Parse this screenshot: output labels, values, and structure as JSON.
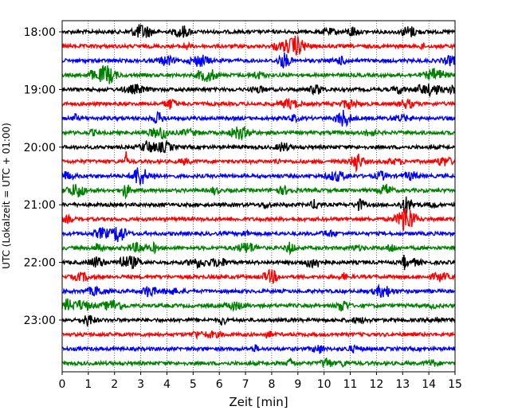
{
  "chart_data": {
    "type": "line",
    "title": "",
    "xlabel": "Zeit  [min]",
    "ylabel": "UTC (Lokalzeit = UTC + 01:00)",
    "xlim": [
      0,
      15
    ],
    "x_ticks": [
      0,
      1,
      2,
      3,
      4,
      5,
      6,
      7,
      8,
      9,
      10,
      11,
      12,
      13,
      14,
      15
    ],
    "x_tick_labels": [
      "0",
      "1",
      "2",
      "3",
      "4",
      "5",
      "6",
      "7",
      "8",
      "9",
      "10",
      "11",
      "12",
      "13",
      "14",
      "15"
    ],
    "y_tick_labels": [
      "18:00",
      "19:00",
      "20:00",
      "21:00",
      "22:00",
      "23:00"
    ],
    "grid": "vertical dotted",
    "trace_colors": [
      "#000000",
      "#ff0000",
      "#0000ff",
      "#008000"
    ],
    "traces": [
      {
        "start": "18:00",
        "color": "#000000"
      },
      {
        "start": "18:15",
        "color": "#ff0000"
      },
      {
        "start": "18:30",
        "color": "#0000ff"
      },
      {
        "start": "18:45",
        "color": "#008000"
      },
      {
        "start": "19:00",
        "color": "#000000"
      },
      {
        "start": "19:15",
        "color": "#ff0000"
      },
      {
        "start": "19:30",
        "color": "#0000ff"
      },
      {
        "start": "19:45",
        "color": "#008000"
      },
      {
        "start": "20:00",
        "color": "#000000"
      },
      {
        "start": "20:15",
        "color": "#ff0000"
      },
      {
        "start": "20:30",
        "color": "#0000ff"
      },
      {
        "start": "20:45",
        "color": "#008000"
      },
      {
        "start": "21:00",
        "color": "#000000"
      },
      {
        "start": "21:15",
        "color": "#ff0000"
      },
      {
        "start": "21:30",
        "color": "#0000ff"
      },
      {
        "start": "21:45",
        "color": "#008000"
      },
      {
        "start": "22:00",
        "color": "#000000"
      },
      {
        "start": "22:15",
        "color": "#ff0000"
      },
      {
        "start": "22:30",
        "color": "#0000ff"
      },
      {
        "start": "22:45",
        "color": "#008000"
      },
      {
        "start": "23:00",
        "color": "#000000"
      },
      {
        "start": "23:15",
        "color": "#ff0000"
      },
      {
        "start": "23:30",
        "color": "#0000ff"
      },
      {
        "start": "23:45",
        "color": "#008000"
      }
    ]
  }
}
